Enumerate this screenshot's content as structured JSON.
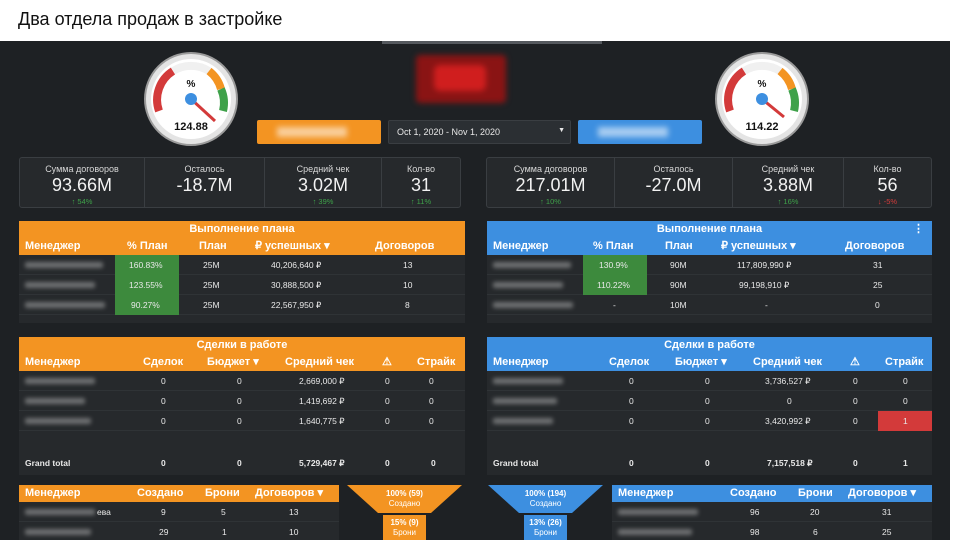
{
  "slide_title": "Два отдела продаж в застройке",
  "date_range": "Oct 1, 2020 - Nov 1, 2020",
  "colors": {
    "orange": "#f39422",
    "blue": "#3d8fe0",
    "green_cell": "#3d8a3d",
    "red_cell": "#d33a3a",
    "background": "#1e2124"
  },
  "gauges": {
    "left": {
      "symbol": "%",
      "value": "124.88"
    },
    "right": {
      "symbol": "%",
      "value": "114.22"
    }
  },
  "kpi_left": [
    {
      "label": "Сумма договоров",
      "value": "93.66M",
      "delta": "↑ 54%",
      "trend": "up"
    },
    {
      "label": "Осталось",
      "value": "-18.7M",
      "delta": "",
      "trend": ""
    },
    {
      "label": "Средний чек",
      "value": "3.02M",
      "delta": "↑ 39%",
      "trend": "up"
    },
    {
      "label": "Кол-во",
      "value": "31",
      "delta": "↑ 11%",
      "trend": "up"
    }
  ],
  "kpi_right": [
    {
      "label": "Сумма договоров",
      "value": "217.01M",
      "delta": "↑ 10%",
      "trend": "up"
    },
    {
      "label": "Осталось",
      "value": "-27.0M",
      "delta": "",
      "trend": ""
    },
    {
      "label": "Средний чек",
      "value": "3.88M",
      "delta": "↑ 16%",
      "trend": "up"
    },
    {
      "label": "Кол-во",
      "value": "56",
      "delta": "↓ -5%",
      "trend": "down"
    }
  ],
  "plan_left": {
    "title": "Выполнение плана",
    "headers": [
      "Менеджер",
      "% План",
      "План",
      "₽ успешных ▾",
      "Договоров"
    ],
    "rows": [
      {
        "pct": "160.83%",
        "plan": "25M",
        "sum": "40,206,640 ₽",
        "count": "13",
        "green": true
      },
      {
        "pct": "123.55%",
        "plan": "25M",
        "sum": "30,888,500 ₽",
        "count": "10",
        "green": true
      },
      {
        "pct": "90.27%",
        "plan": "25M",
        "sum": "22,567,950 ₽",
        "count": "8",
        "green": true
      }
    ]
  },
  "plan_right": {
    "title": "Выполнение плана",
    "headers": [
      "Менеджер",
      "% План",
      "План",
      "₽ успешных ▾",
      "Договоров"
    ],
    "rows": [
      {
        "pct": "130.9%",
        "plan": "90M",
        "sum": "117,809,990 ₽",
        "count": "31",
        "green": true
      },
      {
        "pct": "110.22%",
        "plan": "90M",
        "sum": "99,198,910 ₽",
        "count": "25",
        "green": true
      },
      {
        "pct": "-",
        "plan": "10M",
        "sum": "-",
        "count": "0",
        "green": false
      }
    ]
  },
  "deals_left": {
    "title": "Сделки в работе",
    "headers": [
      "Менеджер",
      "Сделок",
      "Бюджет ▾",
      "Средний чек",
      "⚠",
      "Страйк"
    ],
    "rows": [
      {
        "deals": "0",
        "budget": "0",
        "avg": "2,669,000 ₽",
        "warn": "0",
        "strike": "0"
      },
      {
        "deals": "0",
        "budget": "0",
        "avg": "1,419,692 ₽",
        "warn": "0",
        "strike": "0"
      },
      {
        "deals": "0",
        "budget": "0",
        "avg": "1,640,775 ₽",
        "warn": "0",
        "strike": "0"
      }
    ],
    "total": {
      "label": "Grand total",
      "deals": "0",
      "budget": "0",
      "avg": "5,729,467 ₽",
      "warn": "0",
      "strike": "0"
    }
  },
  "deals_right": {
    "title": "Сделки в работе",
    "headers": [
      "Менеджер",
      "Сделок",
      "Бюджет ▾",
      "Средний чек",
      "⚠",
      "Страйк"
    ],
    "rows": [
      {
        "deals": "0",
        "budget": "0",
        "avg": "3,736,527 ₽",
        "warn": "0",
        "strike": "0"
      },
      {
        "deals": "0",
        "budget": "0",
        "avg": "0",
        "warn": "0",
        "strike": "0"
      },
      {
        "deals": "0",
        "budget": "0",
        "avg": "3,420,992 ₽",
        "warn": "0",
        "strike": "1"
      }
    ],
    "total": {
      "label": "Grand total",
      "deals": "0",
      "budget": "0",
      "avg": "7,157,518 ₽",
      "warn": "0",
      "strike": "1"
    }
  },
  "bottom_left": {
    "headers": [
      "Менеджер",
      "Создано",
      "Брони",
      "Договоров ▾"
    ],
    "rows": [
      {
        "name_tail": "ева",
        "created": "9",
        "bookings": "5",
        "contracts": "13"
      },
      {
        "name_tail": "",
        "created": "29",
        "bookings": "1",
        "contracts": "10"
      }
    ]
  },
  "bottom_right": {
    "headers": [
      "Менеджер",
      "Создано",
      "Брони",
      "Договоров ▾"
    ],
    "rows": [
      {
        "created": "96",
        "bookings": "20",
        "contracts": "31"
      },
      {
        "created": "98",
        "bookings": "6",
        "contracts": "25"
      }
    ]
  },
  "funnel_left": {
    "stage1": {
      "value": "100% (59)",
      "label": "Создано"
    },
    "stage2": {
      "value": "15% (9)",
      "label": "Брони"
    }
  },
  "funnel_right": {
    "stage1": {
      "value": "100% (194)",
      "label": "Создано"
    },
    "stage2": {
      "value": "13% (26)",
      "label": "Брони"
    }
  }
}
